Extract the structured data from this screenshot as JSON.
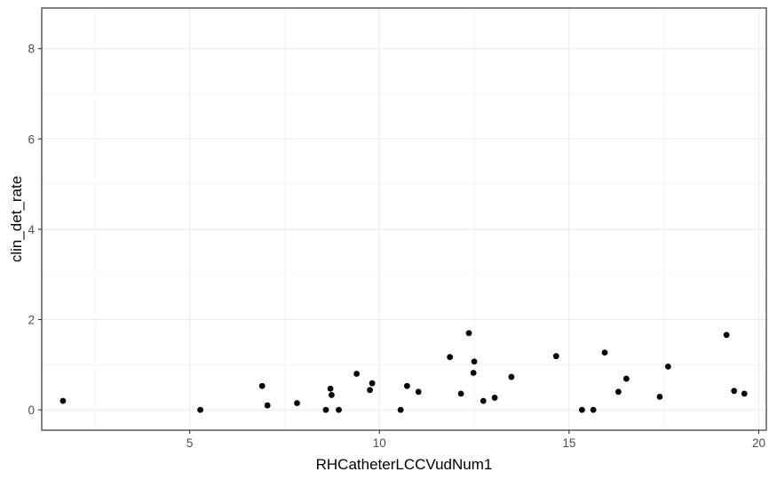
{
  "chart_data": {
    "type": "scatter",
    "xlabel": "RHCatheterLCCVudNum1",
    "ylabel": "clin_det_rate",
    "xlim": [
      1.1,
      20.2
    ],
    "ylim": [
      -0.45,
      8.9
    ],
    "x_major_ticks": [
      5,
      10,
      15,
      20
    ],
    "x_minor_ticks": [
      2.5,
      7.5,
      12.5,
      17.5
    ],
    "y_major_ticks": [
      0,
      2,
      4,
      6,
      8
    ],
    "y_minor_ticks": [
      1,
      3,
      5,
      7
    ],
    "x_tick_labels": [
      "5",
      "10",
      "15",
      "20"
    ],
    "y_tick_labels": [
      "0",
      "2",
      "4",
      "6",
      "8"
    ],
    "grid": true,
    "theme": "bw",
    "point_color": "#000000",
    "points": [
      {
        "x": 1.66,
        "y": 0.2
      },
      {
        "x": 5.28,
        "y": 0.0
      },
      {
        "x": 6.91,
        "y": 0.53
      },
      {
        "x": 7.05,
        "y": 0.1
      },
      {
        "x": 7.83,
        "y": 0.15
      },
      {
        "x": 8.59,
        "y": 0.0
      },
      {
        "x": 8.71,
        "y": 0.47
      },
      {
        "x": 8.74,
        "y": 0.33
      },
      {
        "x": 8.93,
        "y": 0.0
      },
      {
        "x": 9.4,
        "y": 0.8
      },
      {
        "x": 9.75,
        "y": 0.44
      },
      {
        "x": 9.81,
        "y": 0.59
      },
      {
        "x": 10.56,
        "y": 0.0
      },
      {
        "x": 10.73,
        "y": 0.53
      },
      {
        "x": 11.03,
        "y": 0.4
      },
      {
        "x": 11.86,
        "y": 1.17
      },
      {
        "x": 12.15,
        "y": 0.36
      },
      {
        "x": 12.36,
        "y": 1.7
      },
      {
        "x": 12.5,
        "y": 1.07
      },
      {
        "x": 12.48,
        "y": 0.82
      },
      {
        "x": 12.74,
        "y": 0.2
      },
      {
        "x": 13.04,
        "y": 0.27
      },
      {
        "x": 13.48,
        "y": 0.73
      },
      {
        "x": 14.66,
        "y": 1.19
      },
      {
        "x": 15.34,
        "y": 0.0
      },
      {
        "x": 15.64,
        "y": 0.0
      },
      {
        "x": 15.94,
        "y": 1.27
      },
      {
        "x": 16.3,
        "y": 0.4
      },
      {
        "x": 16.51,
        "y": 0.69
      },
      {
        "x": 17.39,
        "y": 0.29
      },
      {
        "x": 17.61,
        "y": 0.96
      },
      {
        "x": 19.15,
        "y": 1.66
      },
      {
        "x": 19.35,
        "y": 0.42
      },
      {
        "x": 19.62,
        "y": 0.36
      }
    ]
  }
}
